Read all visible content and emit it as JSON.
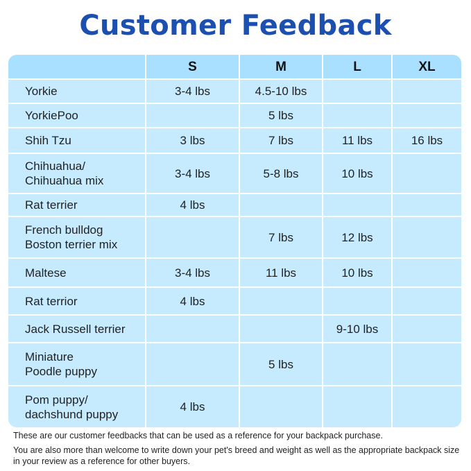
{
  "title": "Customer Feedback",
  "table": {
    "headers": [
      "",
      "S",
      "M",
      "L",
      "XL"
    ],
    "rows": [
      {
        "breed": [
          "Yorkie"
        ],
        "S": "3-4 lbs",
        "M": "4.5-10 lbs",
        "L": "",
        "XL": ""
      },
      {
        "breed": [
          "YorkiePoo"
        ],
        "S": "",
        "M": "5 lbs",
        "L": "",
        "XL": ""
      },
      {
        "breed": [
          "Shih Tzu"
        ],
        "S": "3 lbs",
        "M": "7 lbs",
        "L": "11 lbs",
        "XL": "16 lbs"
      },
      {
        "breed": [
          "Chihuahua/",
          "Chihuahua mix"
        ],
        "S": "3-4 lbs",
        "M": "5-8 lbs",
        "L": "10 lbs",
        "XL": ""
      },
      {
        "breed": [
          "Rat terrier"
        ],
        "S": "4 lbs",
        "M": "",
        "L": "",
        "XL": ""
      },
      {
        "breed": [
          "French bulldog",
          "Boston terrier mix"
        ],
        "S": "",
        "M": "7 lbs",
        "L": "12 lbs",
        "XL": ""
      },
      {
        "breed": [
          "Maltese"
        ],
        "S": "3-4 lbs",
        "M": "11 lbs",
        "L": "10 lbs",
        "XL": ""
      },
      {
        "breed": [
          "Rat terrior"
        ],
        "S": "4 lbs",
        "M": "",
        "L": "",
        "XL": ""
      },
      {
        "breed": [
          "Jack Russell terrier"
        ],
        "S": "",
        "M": "",
        "L": "9-10 lbs",
        "XL": ""
      },
      {
        "breed": [
          "Miniature",
          "Poodle puppy"
        ],
        "S": "",
        "M": "5 lbs",
        "L": "",
        "XL": ""
      },
      {
        "breed": [
          "Pom puppy/",
          "dachshund puppy"
        ],
        "S": "4 lbs",
        "M": "",
        "L": "",
        "XL": ""
      }
    ]
  },
  "footer": {
    "line1": "These are our customer feedbacks that can be used as a reference for your backpack purchase.",
    "line2": "You are also more than welcome to write down your pet's breed and weight as well as the appropriate backpack size in your review as a reference for other buyers."
  }
}
